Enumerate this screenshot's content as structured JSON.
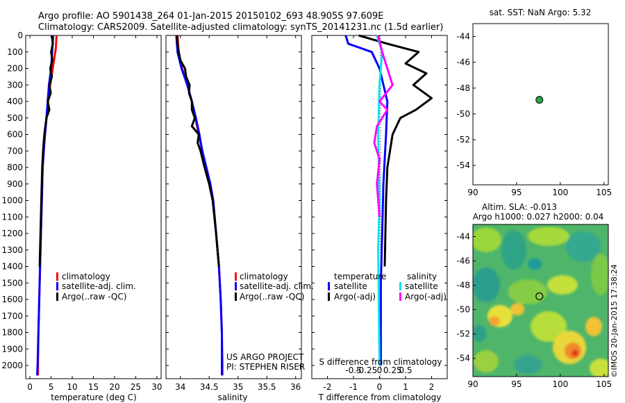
{
  "header": {
    "line1": "Argo profile: AO 5901438_264 01-Jan-2015 20150102_693 48.905S 97.609E",
    "line2": "Climatology: CARS2009. Satellite-adjusted climatology: synTS_20141231.nc (1.5d earlier)"
  },
  "colors": {
    "climatology": "#ff0000",
    "satellite": "#0000ff",
    "argo": "#000000",
    "sat_s": "#00e5ee",
    "argo_s": "#ff00ff"
  },
  "credits": {
    "project": "US ARGO PROJECT",
    "pi": "PI: STEPHEN RISER",
    "imos": "©IMOS 20-Jan-2015 17:38:24"
  },
  "chart_data": [
    {
      "type": "line",
      "xlabel": "temperature (deg C)",
      "ylabel": "",
      "xlim": [
        -1,
        31
      ],
      "ylim": [
        2080,
        0
      ],
      "xticks": [
        0,
        5,
        10,
        15,
        20,
        25,
        30
      ],
      "yticks": [
        0,
        100,
        200,
        300,
        400,
        500,
        600,
        700,
        800,
        900,
        1000,
        1100,
        1200,
        1300,
        1400,
        1500,
        1600,
        1700,
        1800,
        1900,
        2000
      ],
      "legend": [
        "climatology",
        "satellite-adj. clim.",
        "Argo(..raw -QC)"
      ],
      "series": [
        {
          "name": "climatology",
          "color": "#ff0000",
          "points": [
            [
              6.3,
              0
            ],
            [
              6.1,
              80
            ],
            [
              5.4,
              200
            ],
            [
              4.8,
              300
            ],
            [
              4.3,
              400
            ],
            [
              3.9,
              500
            ],
            [
              3.4,
              650
            ],
            [
              3.0,
              800
            ],
            [
              2.8,
              1000
            ],
            [
              2.6,
              1200
            ],
            [
              2.4,
              1400
            ],
            [
              2.2,
              1600
            ],
            [
              2.0,
              1800
            ],
            [
              1.9,
              2000
            ],
            [
              1.9,
              2060
            ]
          ]
        },
        {
          "name": "satellite-adj. clim.",
          "color": "#0000ff",
          "points": [
            [
              5.5,
              0
            ],
            [
              5.3,
              80
            ],
            [
              5.0,
              200
            ],
            [
              4.5,
              300
            ],
            [
              4.2,
              400
            ],
            [
              3.9,
              500
            ],
            [
              3.4,
              650
            ],
            [
              3.0,
              800
            ],
            [
              2.8,
              1000
            ],
            [
              2.6,
              1200
            ],
            [
              2.4,
              1400
            ],
            [
              2.2,
              1600
            ],
            [
              2.0,
              1800
            ],
            [
              1.8,
              2000
            ],
            [
              1.7,
              2060
            ]
          ]
        },
        {
          "name": "Argo(..raw -QC)",
          "color": "#000000",
          "points": [
            [
              5.2,
              0
            ],
            [
              5.4,
              50
            ],
            [
              5.0,
              100
            ],
            [
              5.3,
              150
            ],
            [
              4.8,
              200
            ],
            [
              5.2,
              250
            ],
            [
              4.6,
              300
            ],
            [
              4.9,
              350
            ],
            [
              4.2,
              400
            ],
            [
              4.6,
              450
            ],
            [
              3.9,
              500
            ],
            [
              3.4,
              600
            ],
            [
              3.1,
              700
            ],
            [
              2.9,
              800
            ],
            [
              2.7,
              1000
            ],
            [
              2.5,
              1200
            ],
            [
              2.3,
              1400
            ]
          ]
        }
      ]
    },
    {
      "type": "line",
      "xlabel": "salinity",
      "ylabel": "",
      "xlim": [
        33.75,
        36.1
      ],
      "ylim": [
        2080,
        0
      ],
      "xticks": [
        34,
        34.5,
        35,
        35.5,
        36
      ],
      "xtick_labels": [
        "34",
        "34.5",
        "35",
        "35.5",
        "36"
      ],
      "legend": [
        "climatology",
        "satellite-adj. clim.",
        "Argo(..raw -QC)"
      ],
      "series": [
        {
          "name": "climatology",
          "color": "#ff0000",
          "points": [
            [
              33.95,
              0
            ],
            [
              33.97,
              100
            ],
            [
              34.03,
              200
            ],
            [
              34.12,
              300
            ],
            [
              34.2,
              400
            ],
            [
              34.26,
              500
            ],
            [
              34.32,
              600
            ],
            [
              34.38,
              700
            ],
            [
              34.45,
              800
            ],
            [
              34.52,
              900
            ],
            [
              34.57,
              1000
            ],
            [
              34.62,
              1200
            ],
            [
              34.67,
              1400
            ],
            [
              34.7,
              1600
            ],
            [
              34.72,
              1800
            ],
            [
              34.73,
              2000
            ],
            [
              34.73,
              2060
            ]
          ]
        },
        {
          "name": "satellite-adj. clim.",
          "color": "#0000ff",
          "points": [
            [
              33.93,
              0
            ],
            [
              33.95,
              100
            ],
            [
              34.02,
              200
            ],
            [
              34.12,
              300
            ],
            [
              34.2,
              400
            ],
            [
              34.27,
              500
            ],
            [
              34.33,
              600
            ],
            [
              34.38,
              700
            ],
            [
              34.45,
              800
            ],
            [
              34.52,
              900
            ],
            [
              34.57,
              1000
            ],
            [
              34.62,
              1200
            ],
            [
              34.67,
              1400
            ],
            [
              34.7,
              1600
            ],
            [
              34.72,
              1800
            ],
            [
              34.72,
              2000
            ],
            [
              34.72,
              2060
            ]
          ]
        },
        {
          "name": "Argo(..raw -QC)",
          "color": "#000000",
          "points": [
            [
              33.94,
              0
            ],
            [
              33.95,
              50
            ],
            [
              33.97,
              100
            ],
            [
              34.0,
              150
            ],
            [
              34.08,
              200
            ],
            [
              34.1,
              250
            ],
            [
              34.16,
              300
            ],
            [
              34.15,
              350
            ],
            [
              34.2,
              400
            ],
            [
              34.2,
              450
            ],
            [
              34.25,
              500
            ],
            [
              34.2,
              550
            ],
            [
              34.32,
              600
            ],
            [
              34.3,
              650
            ],
            [
              34.35,
              700
            ],
            [
              34.42,
              800
            ],
            [
              34.5,
              900
            ],
            [
              34.56,
              1000
            ],
            [
              34.62,
              1200
            ],
            [
              34.67,
              1400
            ]
          ]
        }
      ]
    },
    {
      "type": "line",
      "xlabel": "T difference from climatology",
      "top_xlabel": "S difference from climatology",
      "xlim": [
        -2.6,
        2.6
      ],
      "ylim": [
        2080,
        0
      ],
      "xticks": [
        -2,
        -1,
        0,
        1,
        2
      ],
      "top_xticks": [
        -1,
        -0.5,
        0,
        0.5,
        1
      ],
      "top_xtick_labels": [
        "-0.5",
        "-0.25",
        "0",
        "0.25",
        "0.5"
      ],
      "legend_headers": [
        "temperature",
        "salinity"
      ],
      "legend": [
        "satellite",
        "Argo(-adj)",
        "satellite",
        "Argo(-adj)"
      ],
      "series": [
        {
          "name": "satellite",
          "color": "#0000ff",
          "points": [
            [
              -1.3,
              0
            ],
            [
              -1.2,
              50
            ],
            [
              -0.3,
              100
            ],
            [
              0.0,
              200
            ],
            [
              0.3,
              400
            ],
            [
              0.25,
              600
            ],
            [
              0.15,
              900
            ],
            [
              0.1,
              1200
            ],
            [
              0.05,
              1500
            ],
            [
              0.05,
              2000
            ]
          ]
        },
        {
          "name": "Argo(-adj)",
          "color": "#000000",
          "points": [
            [
              -0.8,
              0
            ],
            [
              0.3,
              50
            ],
            [
              1.5,
              100
            ],
            [
              1.0,
              170
            ],
            [
              1.8,
              230
            ],
            [
              1.3,
              300
            ],
            [
              2.0,
              380
            ],
            [
              1.4,
              450
            ],
            [
              0.8,
              500
            ],
            [
              0.5,
              600
            ],
            [
              0.3,
              800
            ],
            [
              0.25,
              1000
            ],
            [
              0.2,
              1400
            ]
          ]
        },
        {
          "name": "satellite",
          "color": "#00e5ee",
          "points": [
            [
              -0.1,
              0
            ],
            [
              0.1,
              100
            ],
            [
              0.0,
              300
            ],
            [
              -0.05,
              600
            ],
            [
              0.0,
              1000
            ],
            [
              -0.05,
              1300
            ],
            [
              0.0,
              2000
            ]
          ]
        },
        {
          "name": "Argo(-adj)",
          "color": "#ff00ff",
          "points": [
            [
              -0.05,
              0
            ],
            [
              0.1,
              100
            ],
            [
              0.5,
              300
            ],
            [
              0.0,
              400
            ],
            [
              0.3,
              450
            ],
            [
              -0.1,
              550
            ],
            [
              -0.2,
              650
            ],
            [
              0.0,
              750
            ],
            [
              -0.1,
              900
            ],
            [
              0.0,
              1100
            ]
          ]
        }
      ]
    },
    {
      "type": "scatter",
      "title": "sat. SST: NaN Argo: 5.32",
      "xlim": [
        90,
        105.5
      ],
      "ylim": [
        -55.5,
        -43
      ],
      "xticks": [
        90,
        95,
        100,
        105
      ],
      "yticks": [
        -44,
        -46,
        -48,
        -50,
        -52,
        -54
      ],
      "points": [
        {
          "x": 97.609,
          "y": -48.905
        }
      ]
    },
    {
      "type": "heatmap",
      "title_line1": "Altim. SLA: -0.013",
      "title_line2": "Argo h1000: 0.027 h2000: 0.04",
      "xlim": [
        90,
        105.5
      ],
      "ylim": [
        -55.5,
        -43
      ],
      "xticks": [
        90,
        95,
        100,
        105
      ],
      "yticks": [
        -44,
        -46,
        -48,
        -50,
        -52,
        -54
      ],
      "marker": {
        "x": 97.609,
        "y": -48.905
      }
    }
  ]
}
